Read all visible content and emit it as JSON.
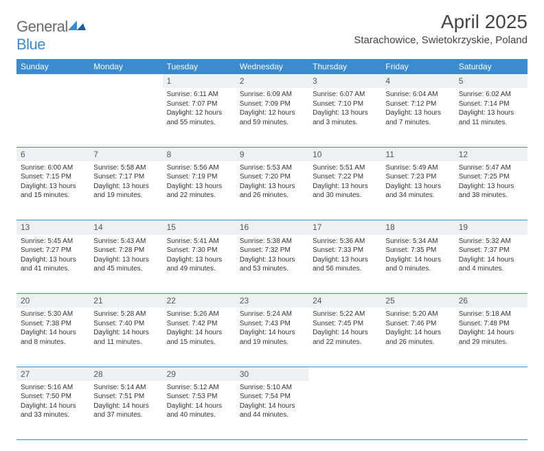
{
  "logo": {
    "general": "General",
    "blue": "Blue"
  },
  "header": {
    "title": "April 2025",
    "location": "Starachowice, Swietokrzyskie, Poland"
  },
  "dow": [
    "Sunday",
    "Monday",
    "Tuesday",
    "Wednesday",
    "Thursday",
    "Friday",
    "Saturday"
  ],
  "colors": {
    "accent": "#3b8bd0",
    "header_bg": "#3b8bd0",
    "header_text": "#ffffff",
    "daynum_bg": "#eef1f3",
    "rule": "#3b8bd0",
    "body_text": "#333333",
    "logo_gray": "#6a6a6a"
  },
  "layout": {
    "cols": 7,
    "rows": 5,
    "first_dow_index": 2,
    "last_day": 30
  },
  "weeks": [
    {
      "nums": [
        "",
        "",
        "1",
        "2",
        "3",
        "4",
        "5"
      ],
      "cells": [
        null,
        null,
        {
          "sr": "Sunrise: 6:11 AM",
          "ss": "Sunset: 7:07 PM",
          "dl": "Daylight: 12 hours and 55 minutes."
        },
        {
          "sr": "Sunrise: 6:09 AM",
          "ss": "Sunset: 7:09 PM",
          "dl": "Daylight: 12 hours and 59 minutes."
        },
        {
          "sr": "Sunrise: 6:07 AM",
          "ss": "Sunset: 7:10 PM",
          "dl": "Daylight: 13 hours and 3 minutes."
        },
        {
          "sr": "Sunrise: 6:04 AM",
          "ss": "Sunset: 7:12 PM",
          "dl": "Daylight: 13 hours and 7 minutes."
        },
        {
          "sr": "Sunrise: 6:02 AM",
          "ss": "Sunset: 7:14 PM",
          "dl": "Daylight: 13 hours and 11 minutes."
        }
      ]
    },
    {
      "nums": [
        "6",
        "7",
        "8",
        "9",
        "10",
        "11",
        "12"
      ],
      "cells": [
        {
          "sr": "Sunrise: 6:00 AM",
          "ss": "Sunset: 7:15 PM",
          "dl": "Daylight: 13 hours and 15 minutes."
        },
        {
          "sr": "Sunrise: 5:58 AM",
          "ss": "Sunset: 7:17 PM",
          "dl": "Daylight: 13 hours and 19 minutes."
        },
        {
          "sr": "Sunrise: 5:56 AM",
          "ss": "Sunset: 7:19 PM",
          "dl": "Daylight: 13 hours and 22 minutes."
        },
        {
          "sr": "Sunrise: 5:53 AM",
          "ss": "Sunset: 7:20 PM",
          "dl": "Daylight: 13 hours and 26 minutes."
        },
        {
          "sr": "Sunrise: 5:51 AM",
          "ss": "Sunset: 7:22 PM",
          "dl": "Daylight: 13 hours and 30 minutes."
        },
        {
          "sr": "Sunrise: 5:49 AM",
          "ss": "Sunset: 7:23 PM",
          "dl": "Daylight: 13 hours and 34 minutes."
        },
        {
          "sr": "Sunrise: 5:47 AM",
          "ss": "Sunset: 7:25 PM",
          "dl": "Daylight: 13 hours and 38 minutes."
        }
      ]
    },
    {
      "nums": [
        "13",
        "14",
        "15",
        "16",
        "17",
        "18",
        "19"
      ],
      "cells": [
        {
          "sr": "Sunrise: 5:45 AM",
          "ss": "Sunset: 7:27 PM",
          "dl": "Daylight: 13 hours and 41 minutes."
        },
        {
          "sr": "Sunrise: 5:43 AM",
          "ss": "Sunset: 7:28 PM",
          "dl": "Daylight: 13 hours and 45 minutes."
        },
        {
          "sr": "Sunrise: 5:41 AM",
          "ss": "Sunset: 7:30 PM",
          "dl": "Daylight: 13 hours and 49 minutes."
        },
        {
          "sr": "Sunrise: 5:38 AM",
          "ss": "Sunset: 7:32 PM",
          "dl": "Daylight: 13 hours and 53 minutes."
        },
        {
          "sr": "Sunrise: 5:36 AM",
          "ss": "Sunset: 7:33 PM",
          "dl": "Daylight: 13 hours and 56 minutes."
        },
        {
          "sr": "Sunrise: 5:34 AM",
          "ss": "Sunset: 7:35 PM",
          "dl": "Daylight: 14 hours and 0 minutes."
        },
        {
          "sr": "Sunrise: 5:32 AM",
          "ss": "Sunset: 7:37 PM",
          "dl": "Daylight: 14 hours and 4 minutes."
        }
      ]
    },
    {
      "nums": [
        "20",
        "21",
        "22",
        "23",
        "24",
        "25",
        "26"
      ],
      "cells": [
        {
          "sr": "Sunrise: 5:30 AM",
          "ss": "Sunset: 7:38 PM",
          "dl": "Daylight: 14 hours and 8 minutes."
        },
        {
          "sr": "Sunrise: 5:28 AM",
          "ss": "Sunset: 7:40 PM",
          "dl": "Daylight: 14 hours and 11 minutes."
        },
        {
          "sr": "Sunrise: 5:26 AM",
          "ss": "Sunset: 7:42 PM",
          "dl": "Daylight: 14 hours and 15 minutes."
        },
        {
          "sr": "Sunrise: 5:24 AM",
          "ss": "Sunset: 7:43 PM",
          "dl": "Daylight: 14 hours and 19 minutes."
        },
        {
          "sr": "Sunrise: 5:22 AM",
          "ss": "Sunset: 7:45 PM",
          "dl": "Daylight: 14 hours and 22 minutes."
        },
        {
          "sr": "Sunrise: 5:20 AM",
          "ss": "Sunset: 7:46 PM",
          "dl": "Daylight: 14 hours and 26 minutes."
        },
        {
          "sr": "Sunrise: 5:18 AM",
          "ss": "Sunset: 7:48 PM",
          "dl": "Daylight: 14 hours and 29 minutes."
        }
      ]
    },
    {
      "nums": [
        "27",
        "28",
        "29",
        "30",
        "",
        "",
        ""
      ],
      "cells": [
        {
          "sr": "Sunrise: 5:16 AM",
          "ss": "Sunset: 7:50 PM",
          "dl": "Daylight: 14 hours and 33 minutes."
        },
        {
          "sr": "Sunrise: 5:14 AM",
          "ss": "Sunset: 7:51 PM",
          "dl": "Daylight: 14 hours and 37 minutes."
        },
        {
          "sr": "Sunrise: 5:12 AM",
          "ss": "Sunset: 7:53 PM",
          "dl": "Daylight: 14 hours and 40 minutes."
        },
        {
          "sr": "Sunrise: 5:10 AM",
          "ss": "Sunset: 7:54 PM",
          "dl": "Daylight: 14 hours and 44 minutes."
        },
        null,
        null,
        null
      ]
    }
  ]
}
